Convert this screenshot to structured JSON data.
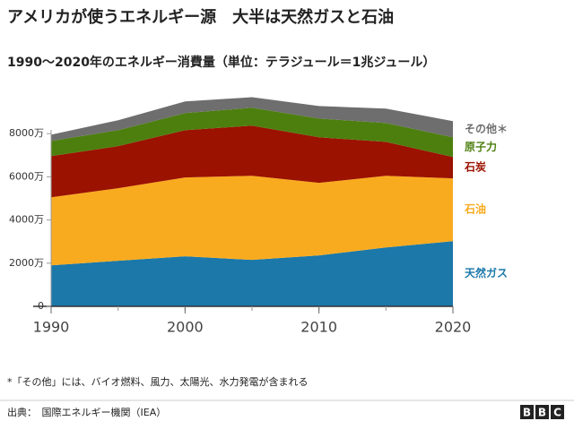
{
  "chart_data": {
    "type": "stacked_area",
    "title": "アメリカが使うエネルギー源　大半は天然ガスと石油",
    "subtitle": "1990〜2020年のエネルギー消費量（単位：テラジュール＝1兆ジュール）",
    "x": [
      1990,
      1995,
      2000,
      2005,
      2010,
      2015,
      2020
    ],
    "xlim": [
      1990,
      2020
    ],
    "xticks": [
      1990,
      2000,
      2010,
      2020
    ],
    "ylim": [
      0,
      10000
    ],
    "yticks": [
      0,
      {
        "value": 2000,
        "label": "2000万"
      },
      {
        "value": 4000,
        "label": "4000万"
      },
      {
        "value": 6000,
        "label": "6000万"
      },
      {
        "value": 8000,
        "label": "8000万"
      }
    ],
    "series": [
      {
        "name": "天然ガス",
        "color": "#1b78a9",
        "values": [
          1900,
          2110,
          2320,
          2150,
          2360,
          2730,
          3020
        ]
      },
      {
        "name": "石油",
        "color": "#f9ab1f",
        "values": [
          3150,
          3360,
          3650,
          3900,
          3360,
          3320,
          2910
        ]
      },
      {
        "name": "石炭",
        "color": "#9b1200",
        "values": [
          1910,
          1950,
          2190,
          2320,
          2110,
          1570,
          990
        ]
      },
      {
        "name": "原子力",
        "color": "#4d7f0f",
        "values": [
          700,
          740,
          790,
          830,
          870,
          870,
          910
        ]
      },
      {
        "name": "その他＊",
        "color": "#6e6e6e",
        "values": [
          290,
          460,
          540,
          490,
          580,
          670,
          750
        ]
      }
    ],
    "footnote": "*「その他」には、バイオ燃料、風力、太陽光、水力発電が含まれる",
    "source": "出典：　国際エネルギー機関（IEA）",
    "logo": [
      "B",
      "B",
      "C"
    ]
  }
}
